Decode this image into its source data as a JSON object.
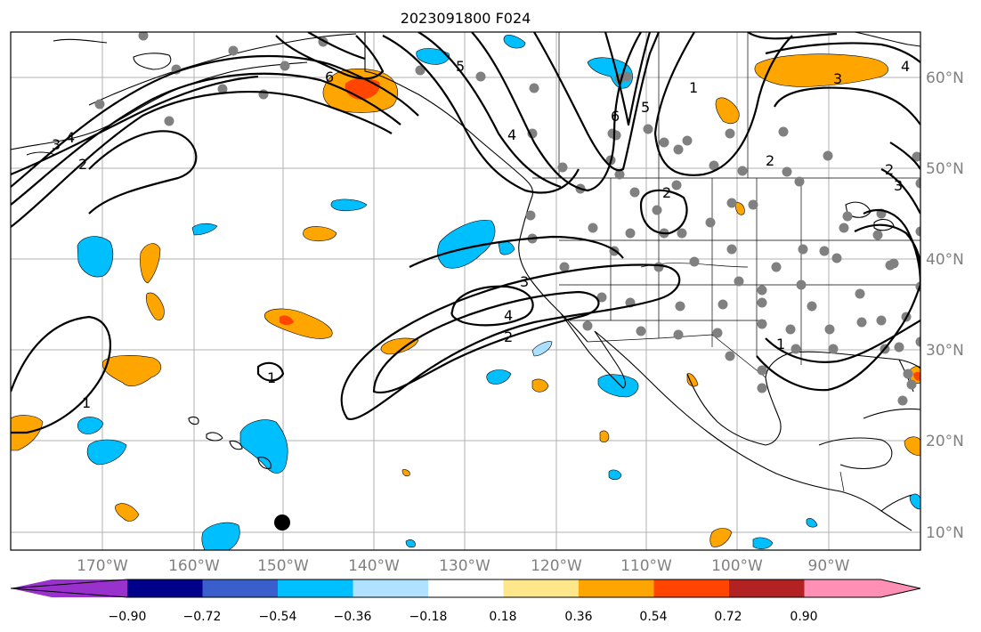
{
  "title": "2023091800 F024",
  "lon_ticks": [
    "170°W",
    "160°W",
    "150°W",
    "140°W",
    "130°W",
    "120°W",
    "110°W",
    "100°W",
    "90°W"
  ],
  "lat_ticks": [
    "60°N",
    "50°N",
    "40°N",
    "30°N",
    "20°N",
    "10°N"
  ],
  "colorbar": {
    "tick_labels": [
      "−0.90",
      "−0.72",
      "−0.54",
      "−0.36",
      "−0.18",
      "0.18",
      "0.36",
      "0.54",
      "0.72",
      "0.90"
    ],
    "colors": [
      "#9932cc",
      "#00008b",
      "#3a5fcd",
      "#00bfff",
      "#b0e2ff",
      "#ffffff",
      "#fde78a",
      "#ffa500",
      "#ff4500",
      "#b22222",
      "#ff8fb5"
    ]
  },
  "contour_labels": [
    "1",
    "2",
    "3",
    "4",
    "5",
    "6"
  ],
  "marker_colors": {
    "stations": "#808080",
    "point": "#000000"
  }
}
